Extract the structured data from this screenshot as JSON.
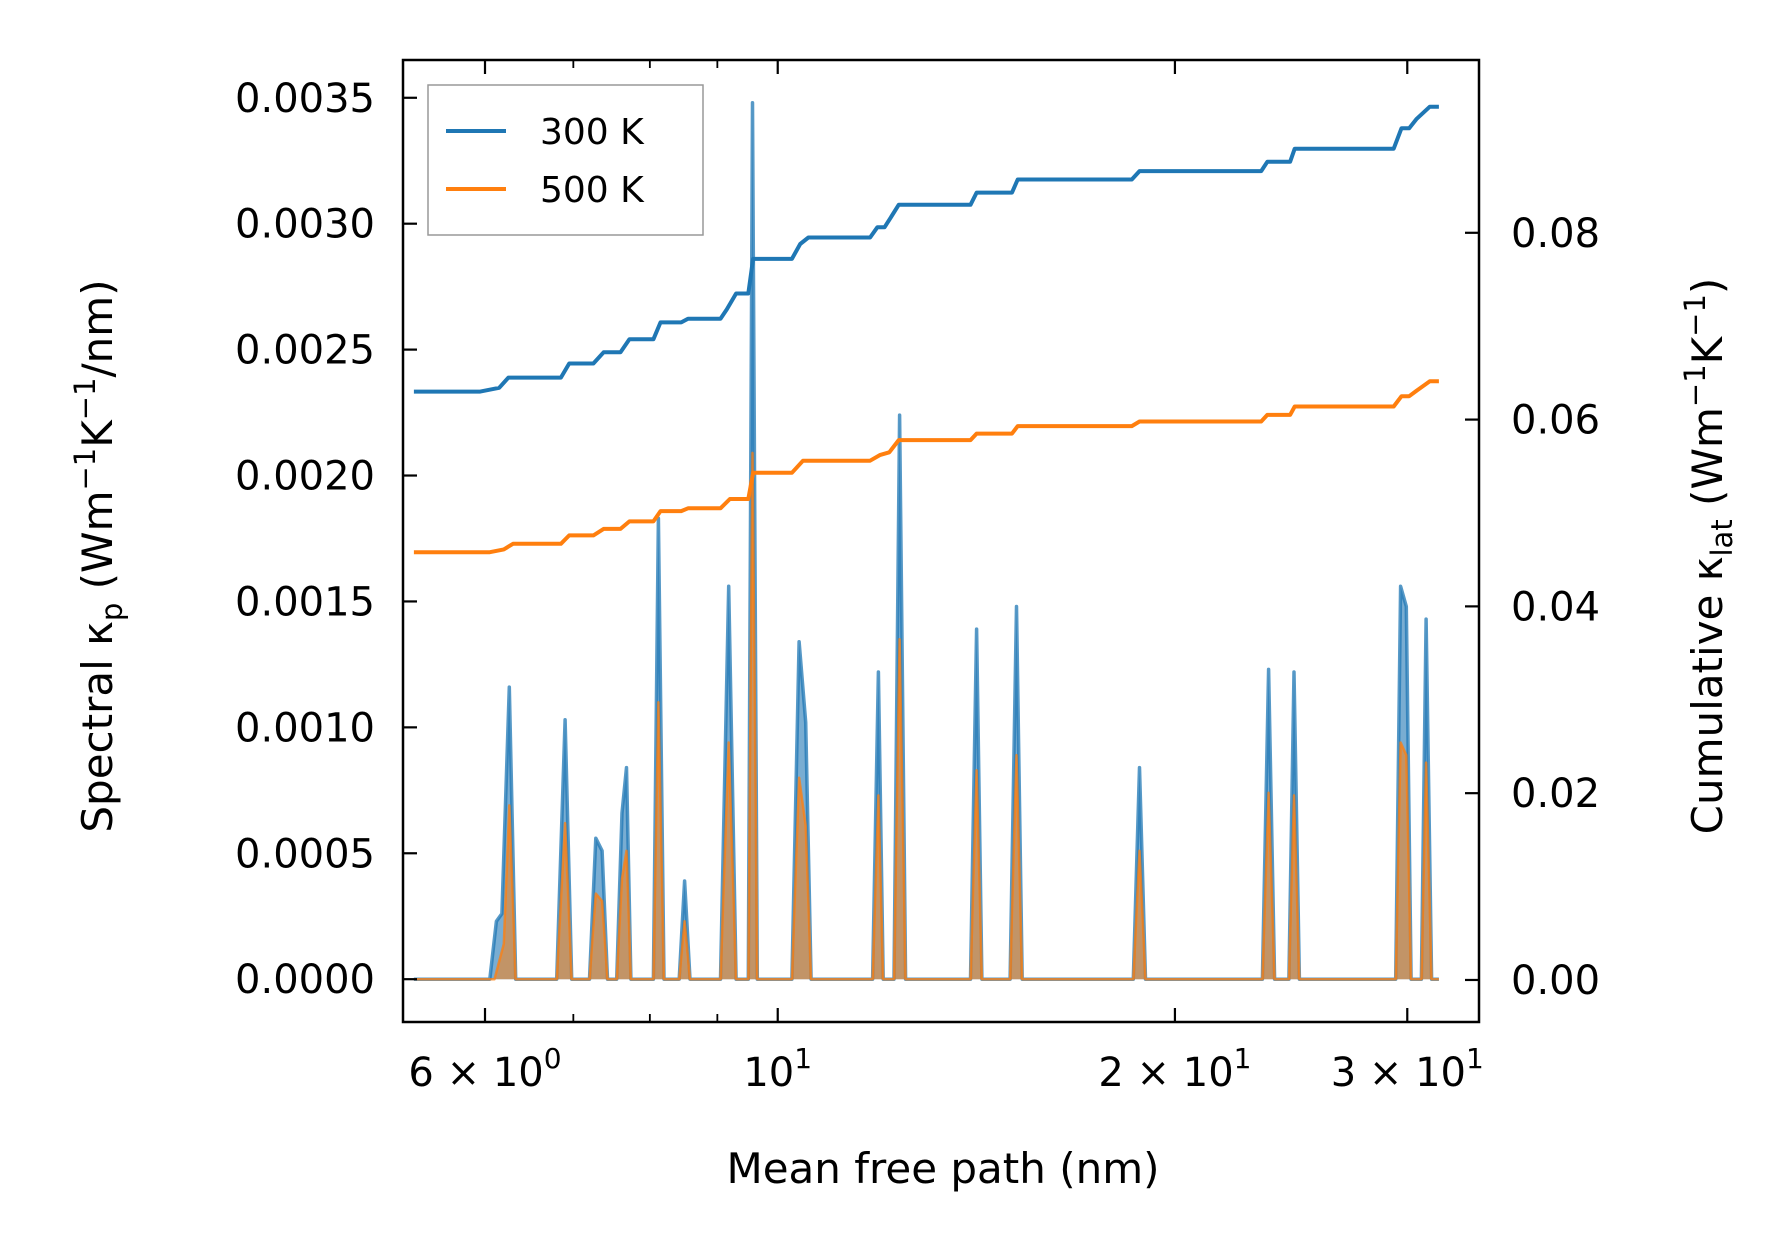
{
  "chart_data": {
    "type": "line",
    "xscale": "log",
    "xlabel": "Mean free path (nm)",
    "ylabel": {
      "main": "Spectral κ",
      "sub": "p",
      "units_pre": " (Wm",
      "sup1": "−1",
      "units_mid": "K",
      "sup2": "−1",
      "units_post": "/nm)"
    },
    "y2label": {
      "main": "Cumulative κ",
      "sub": "lat",
      "units_pre": " (Wm",
      "sup1": "−1",
      "units_mid": "K",
      "sup2": "−1",
      "units_post": ")"
    },
    "xlim": [
      5.2,
      34.0
    ],
    "ylim": [
      -0.00017,
      0.00365
    ],
    "y2lim": [
      -0.0045,
      0.0985
    ],
    "x_ticks": [
      {
        "value": 6,
        "mantissa": "6",
        "exp": "0"
      },
      {
        "value": 10,
        "mantissa": "",
        "exp": "1"
      },
      {
        "value": 20,
        "mantissa": "2",
        "exp": "1"
      },
      {
        "value": 30,
        "mantissa": "3",
        "exp": "1"
      }
    ],
    "x_minor_ticks": [
      7,
      8,
      9
    ],
    "y_ticks": [
      "0.0000",
      "0.0005",
      "0.0010",
      "0.0015",
      "0.0020",
      "0.0025",
      "0.0030",
      "0.0035"
    ],
    "y2_ticks": [
      "0.00",
      "0.02",
      "0.04",
      "0.06",
      "0.08"
    ],
    "legend": {
      "position": "upper-left",
      "entries": [
        {
          "label": "300 K",
          "color": "#1f77b4"
        },
        {
          "label": "500 K",
          "color": "#ff7f0e"
        }
      ]
    },
    "series": [
      {
        "name": "300 K",
        "color": "#1f77b4",
        "spectral": [
          [
            5.3,
            0
          ],
          [
            5.9,
            0
          ],
          [
            6.05,
            0
          ],
          [
            6.12,
            0.00023
          ],
          [
            6.18,
            0.00026
          ],
          [
            6.26,
            0.00116
          ],
          [
            6.33,
            0
          ],
          [
            6.8,
            0
          ],
          [
            6.9,
            0.00103
          ],
          [
            6.98,
            0
          ],
          [
            7.2,
            0
          ],
          [
            7.28,
            0.00056
          ],
          [
            7.36,
            0.00051
          ],
          [
            7.43,
            0
          ],
          [
            7.55,
            0
          ],
          [
            7.62,
            0.00066
          ],
          [
            7.68,
            0.00084
          ],
          [
            7.74,
            0
          ],
          [
            8.05,
            0
          ],
          [
            8.12,
            0.00183
          ],
          [
            8.2,
            0
          ],
          [
            8.42,
            0
          ],
          [
            8.5,
            0.00039
          ],
          [
            8.58,
            0
          ],
          [
            9.05,
            0
          ],
          [
            9.18,
            0.00156
          ],
          [
            9.3,
            0
          ],
          [
            9.5,
            0
          ],
          [
            9.57,
            0.00348
          ],
          [
            9.65,
            0
          ],
          [
            10.25,
            0
          ],
          [
            10.38,
            0.00134
          ],
          [
            10.5,
            0.00102
          ],
          [
            10.6,
            0
          ],
          [
            11.8,
            0
          ],
          [
            11.92,
            0.00122
          ],
          [
            12.02,
            0
          ],
          [
            12.25,
            0
          ],
          [
            12.37,
            0.00224
          ],
          [
            12.5,
            0
          ],
          [
            14.0,
            0
          ],
          [
            14.15,
            0.00139
          ],
          [
            14.28,
            0
          ],
          [
            15.0,
            0
          ],
          [
            15.17,
            0.00148
          ],
          [
            15.32,
            0
          ],
          [
            18.6,
            0
          ],
          [
            18.8,
            0.00084
          ],
          [
            19.0,
            0
          ],
          [
            23.3,
            0
          ],
          [
            23.55,
            0.00123
          ],
          [
            23.8,
            0
          ],
          [
            24.4,
            0
          ],
          [
            24.62,
            0.00122
          ],
          [
            24.85,
            0
          ],
          [
            29.4,
            0
          ],
          [
            29.65,
            0.00156
          ],
          [
            29.95,
            0.00148
          ],
          [
            30.2,
            0
          ],
          [
            30.75,
            0
          ],
          [
            31.0,
            0.00143
          ],
          [
            31.3,
            0
          ],
          [
            31.7,
            0
          ]
        ],
        "cumulative": [
          [
            5.3,
            0.063
          ],
          [
            5.95,
            0.063
          ],
          [
            6.15,
            0.0634
          ],
          [
            6.25,
            0.0645
          ],
          [
            6.85,
            0.0645
          ],
          [
            6.95,
            0.066
          ],
          [
            7.25,
            0.066
          ],
          [
            7.38,
            0.0672
          ],
          [
            7.6,
            0.0672
          ],
          [
            7.72,
            0.0686
          ],
          [
            8.05,
            0.0686
          ],
          [
            8.15,
            0.0704
          ],
          [
            8.45,
            0.0704
          ],
          [
            8.55,
            0.0708
          ],
          [
            9.05,
            0.0708
          ],
          [
            9.15,
            0.0718
          ],
          [
            9.3,
            0.0735
          ],
          [
            9.5,
            0.0735
          ],
          [
            9.58,
            0.0772
          ],
          [
            10.25,
            0.0772
          ],
          [
            10.4,
            0.0788
          ],
          [
            10.55,
            0.0795
          ],
          [
            11.75,
            0.0795
          ],
          [
            11.9,
            0.0806
          ],
          [
            12.05,
            0.0806
          ],
          [
            12.2,
            0.0818
          ],
          [
            12.35,
            0.083
          ],
          [
            14.0,
            0.083
          ],
          [
            14.15,
            0.0843
          ],
          [
            15.05,
            0.0843
          ],
          [
            15.2,
            0.0857
          ],
          [
            18.55,
            0.0857
          ],
          [
            18.8,
            0.0866
          ],
          [
            23.25,
            0.0866
          ],
          [
            23.5,
            0.0876
          ],
          [
            24.45,
            0.0876
          ],
          [
            24.65,
            0.089
          ],
          [
            29.3,
            0.089
          ],
          [
            29.7,
            0.0912
          ],
          [
            30.1,
            0.0912
          ],
          [
            30.5,
            0.0922
          ],
          [
            31.2,
            0.0935
          ],
          [
            31.7,
            0.0935
          ]
        ]
      },
      {
        "name": "500 K",
        "color": "#ff7f0e",
        "spectral": [
          [
            5.3,
            0
          ],
          [
            6.1,
            0
          ],
          [
            6.2,
            0.00014
          ],
          [
            6.26,
            0.00069
          ],
          [
            6.33,
            0
          ],
          [
            6.8,
            0
          ],
          [
            6.9,
            0.00062
          ],
          [
            6.98,
            0
          ],
          [
            7.2,
            0
          ],
          [
            7.28,
            0.00034
          ],
          [
            7.36,
            0.00031
          ],
          [
            7.43,
            0
          ],
          [
            7.55,
            0
          ],
          [
            7.62,
            0.0004
          ],
          [
            7.68,
            0.00051
          ],
          [
            7.74,
            0
          ],
          [
            8.05,
            0
          ],
          [
            8.12,
            0.0011
          ],
          [
            8.2,
            0
          ],
          [
            8.42,
            0
          ],
          [
            8.5,
            0.00023
          ],
          [
            8.58,
            0
          ],
          [
            9.05,
            0
          ],
          [
            9.18,
            0.00094
          ],
          [
            9.3,
            0
          ],
          [
            9.5,
            0
          ],
          [
            9.57,
            0.00209
          ],
          [
            9.65,
            0
          ],
          [
            10.25,
            0
          ],
          [
            10.38,
            0.0008
          ],
          [
            10.5,
            0.00061
          ],
          [
            10.6,
            0
          ],
          [
            11.8,
            0
          ],
          [
            11.92,
            0.00073
          ],
          [
            12.02,
            0
          ],
          [
            12.25,
            0
          ],
          [
            12.37,
            0.00135
          ],
          [
            12.5,
            0
          ],
          [
            14.0,
            0
          ],
          [
            14.15,
            0.00083
          ],
          [
            14.28,
            0
          ],
          [
            15.0,
            0
          ],
          [
            15.17,
            0.00089
          ],
          [
            15.32,
            0
          ],
          [
            18.6,
            0
          ],
          [
            18.8,
            0.00051
          ],
          [
            19.0,
            0
          ],
          [
            23.3,
            0
          ],
          [
            23.55,
            0.00074
          ],
          [
            23.8,
            0
          ],
          [
            24.4,
            0
          ],
          [
            24.62,
            0.00073
          ],
          [
            24.85,
            0
          ],
          [
            29.4,
            0
          ],
          [
            29.65,
            0.00094
          ],
          [
            29.95,
            0.00089
          ],
          [
            30.2,
            0
          ],
          [
            30.75,
            0
          ],
          [
            31.0,
            0.00086
          ],
          [
            31.3,
            0
          ],
          [
            31.7,
            0
          ]
        ],
        "cumulative": [
          [
            5.3,
            0.0458
          ],
          [
            6.05,
            0.0458
          ],
          [
            6.2,
            0.0461
          ],
          [
            6.3,
            0.0467
          ],
          [
            6.85,
            0.0467
          ],
          [
            6.95,
            0.0476
          ],
          [
            7.25,
            0.0476
          ],
          [
            7.38,
            0.0483
          ],
          [
            7.6,
            0.0483
          ],
          [
            7.72,
            0.0491
          ],
          [
            8.05,
            0.0491
          ],
          [
            8.15,
            0.0502
          ],
          [
            8.45,
            0.0502
          ],
          [
            8.55,
            0.0505
          ],
          [
            9.05,
            0.0505
          ],
          [
            9.2,
            0.0515
          ],
          [
            9.5,
            0.0515
          ],
          [
            9.58,
            0.0543
          ],
          [
            10.25,
            0.0543
          ],
          [
            10.45,
            0.0556
          ],
          [
            11.75,
            0.0556
          ],
          [
            11.95,
            0.0562
          ],
          [
            12.15,
            0.0565
          ],
          [
            12.35,
            0.0578
          ],
          [
            14.0,
            0.0578
          ],
          [
            14.15,
            0.0585
          ],
          [
            15.05,
            0.0585
          ],
          [
            15.2,
            0.0593
          ],
          [
            18.55,
            0.0593
          ],
          [
            18.8,
            0.0598
          ],
          [
            23.25,
            0.0598
          ],
          [
            23.5,
            0.0605
          ],
          [
            24.45,
            0.0605
          ],
          [
            24.65,
            0.0614
          ],
          [
            29.3,
            0.0614
          ],
          [
            29.7,
            0.0625
          ],
          [
            30.1,
            0.0625
          ],
          [
            30.5,
            0.0631
          ],
          [
            31.2,
            0.0641
          ],
          [
            31.7,
            0.0641
          ]
        ]
      }
    ]
  }
}
